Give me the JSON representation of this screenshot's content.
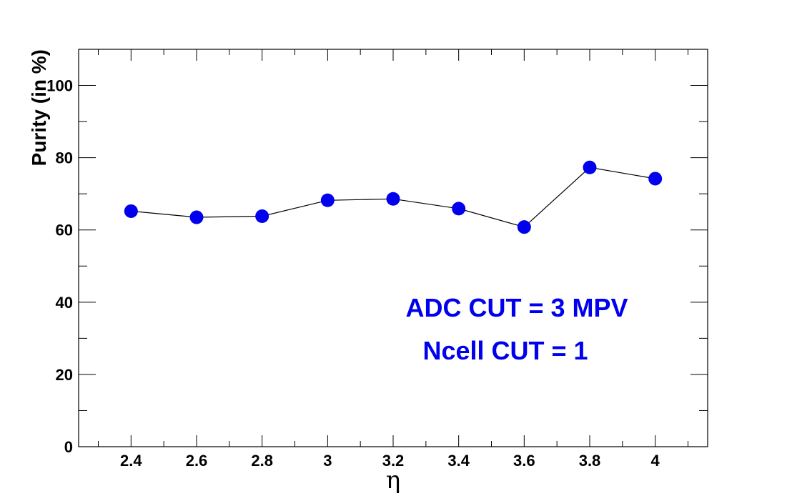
{
  "chart_data": {
    "type": "line",
    "title": "",
    "xlabel": "η",
    "ylabel": "Purity (in %)",
    "xlim": [
      2.24,
      4.16
    ],
    "ylim": [
      0,
      110
    ],
    "x": [
      2.4,
      2.6,
      2.8,
      3.0,
      3.2,
      3.4,
      3.6,
      3.8,
      4.0
    ],
    "series": [
      {
        "values": [
          65.2,
          63.5,
          63.8,
          68.2,
          68.6,
          65.9,
          60.8,
          77.3,
          74.2
        ]
      }
    ],
    "x_ticks": [
      2.4,
      2.6,
      2.8,
      3.0,
      3.2,
      3.4,
      3.6,
      3.8,
      4.0
    ],
    "x_tick_labels": [
      "2.4",
      "2.6",
      "2.8",
      "3",
      "3.2",
      "3.4",
      "3.6",
      "3.8",
      "4"
    ],
    "y_ticks": [
      0,
      20,
      40,
      60,
      80,
      100
    ],
    "y_tick_labels": [
      "0",
      "20",
      "40",
      "60",
      "80",
      "100"
    ],
    "grid": false,
    "marker_color": "#0000ee",
    "line_color": "#000000",
    "annotations": [
      {
        "text": "ADC CUT = 3 MPV",
        "color": "#0000ee"
      },
      {
        "text": "Ncell CUT = 1",
        "color": "#0000ee"
      }
    ]
  }
}
